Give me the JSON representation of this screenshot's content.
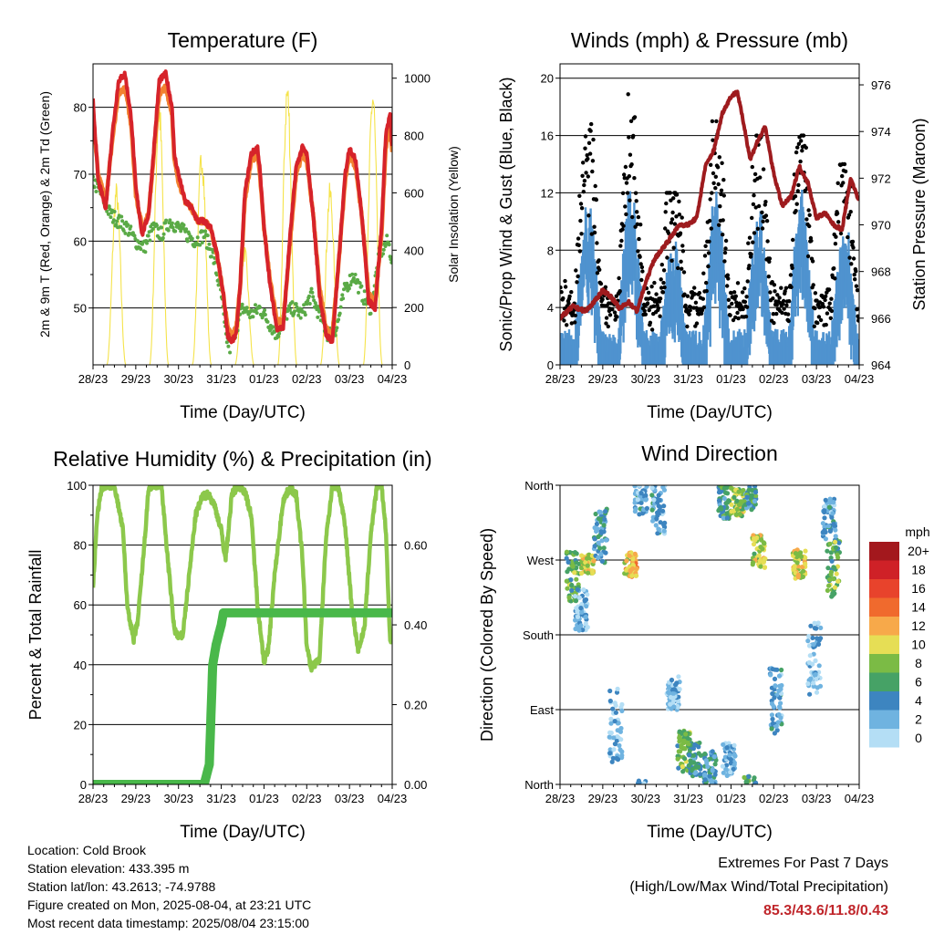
{
  "panels": {
    "temperature": {
      "title": "Temperature (F)",
      "xlabel": "Time (Day/UTC)",
      "ylabel_left": "2m & 9m T (Red, Orange) & 2m Td (Green)",
      "ylabel_right": "Solar Insolation (Yellow)"
    },
    "winds": {
      "title": "Winds (mph) & Pressure (mb)",
      "xlabel": "Time (Day/UTC)",
      "ylabel_left": "Sonic/Prop Wind & Gust (Blue, Black)",
      "ylabel_right": "Station Pressure (Maroon)"
    },
    "humidity": {
      "title": "Relative Humidity (%) & Precipitation (in)",
      "xlabel": "Time (Day/UTC)",
      "ylabel_left": "Percent & Total Rainfall"
    },
    "direction": {
      "title": "Wind Direction",
      "xlabel": "Time (Day/UTC)",
      "ylabel_left": "Direction (Colored By Speed)"
    }
  },
  "x_ticks": [
    "28/23",
    "29/23",
    "30/23",
    "31/23",
    "01/23",
    "02/23",
    "03/23",
    "04/23"
  ],
  "chart_data": [
    {
      "type": "line",
      "name": "temperature",
      "title": "Temperature (F)",
      "xlabel": "Time (Day/UTC)",
      "ylabel": "2m & 9m T (Red, Orange) & 2m Td (Green)",
      "y2label": "Solar Insolation (Yellow)",
      "xlim": [
        0,
        7
      ],
      "ylim": [
        41.5,
        86.5
      ],
      "yticks": [
        50,
        60,
        70,
        80
      ],
      "y2lim": [
        0,
        1050
      ],
      "y2ticks": [
        0,
        200,
        400,
        600,
        800,
        1000
      ],
      "grid": true,
      "series": [
        {
          "key": "t2m",
          "color": "#d6232a",
          "x": [
            0,
            0.12,
            0.3,
            0.45,
            0.6,
            0.75,
            0.9,
            1.0,
            1.15,
            1.3,
            1.45,
            1.55,
            1.7,
            1.85,
            1.9,
            2.0,
            2.15,
            2.3,
            2.45,
            2.6,
            2.75,
            2.9,
            3.05,
            3.15,
            3.25,
            3.35,
            3.45,
            3.55,
            3.7,
            3.85,
            3.9,
            4.0,
            4.15,
            4.3,
            4.45,
            4.6,
            4.75,
            4.9,
            5.0,
            5.15,
            5.3,
            5.45,
            5.6,
            5.75,
            5.9,
            6.0,
            6.15,
            6.3,
            6.45,
            6.6,
            6.75,
            6.85,
            6.95,
            7.0
          ],
          "y": [
            81,
            69,
            65,
            76,
            84,
            85,
            78,
            68,
            61,
            64,
            76,
            84,
            85,
            80,
            73,
            70,
            66,
            65,
            63,
            63,
            62,
            58,
            52,
            46,
            45,
            46,
            54,
            67,
            73,
            74,
            71,
            62,
            53,
            47,
            47,
            60,
            71,
            74,
            73,
            64,
            52,
            46,
            45,
            57,
            70,
            74,
            72,
            63,
            51,
            50,
            62,
            76,
            79,
            74
          ]
        },
        {
          "key": "t9m",
          "color": "#f28230",
          "x": [
            0,
            0.12,
            0.3,
            0.45,
            0.6,
            0.75,
            0.9,
            1.0,
            1.15,
            1.3,
            1.45,
            1.55,
            1.7,
            1.85,
            1.9,
            2.0,
            2.15,
            2.3,
            2.45,
            2.6,
            2.75,
            2.9,
            3.05,
            3.15,
            3.25,
            3.35,
            3.45,
            3.55,
            3.7,
            3.85,
            3.9,
            4.0,
            4.15,
            4.3,
            4.45,
            4.6,
            4.75,
            4.9,
            5.0,
            5.15,
            5.3,
            5.45,
            5.6,
            5.75,
            5.9,
            6.0,
            6.15,
            6.3,
            6.45,
            6.6,
            6.75,
            6.85,
            6.95,
            7.0
          ],
          "y": [
            79,
            70,
            66,
            75,
            82,
            83,
            77,
            67,
            62,
            64,
            75,
            82,
            83,
            79,
            72,
            69,
            66,
            65,
            63,
            63,
            62,
            58,
            52,
            47,
            46,
            47,
            54,
            66,
            72,
            73,
            70,
            62,
            54,
            48,
            48,
            59,
            70,
            73,
            72,
            64,
            53,
            47,
            46,
            57,
            69,
            73,
            71,
            63,
            52,
            51,
            61,
            74,
            77,
            73
          ]
        },
        {
          "key": "td2m",
          "color": "#5aaa46",
          "x": [
            0,
            0.2,
            0.4,
            0.6,
            0.8,
            1.0,
            1.2,
            1.4,
            1.6,
            1.8,
            2.0,
            2.2,
            2.4,
            2.6,
            2.8,
            3.0,
            3.1,
            3.2,
            3.3,
            3.5,
            3.7,
            3.9,
            4.1,
            4.3,
            4.5,
            4.7,
            4.9,
            5.1,
            5.3,
            5.5,
            5.7,
            5.9,
            6.1,
            6.3,
            6.5,
            6.7,
            6.9,
            7.0
          ],
          "y": [
            69,
            67,
            64,
            63,
            62,
            60,
            59,
            62,
            61,
            63,
            62,
            61,
            60,
            61,
            58,
            52,
            46,
            44,
            46,
            50,
            49,
            50,
            48,
            46,
            49,
            50,
            49,
            52,
            49,
            46,
            47,
            53,
            55,
            52,
            50,
            58,
            60,
            57
          ]
        }
      ],
      "solar": {
        "key": "solar",
        "color": "#f5e34a",
        "peaks": [
          {
            "day": 0,
            "peak": 640
          },
          {
            "day": 1,
            "peak": 950
          },
          {
            "day": 2,
            "peak": 780
          },
          {
            "day": 3,
            "peak": 420
          },
          {
            "day": 4,
            "peak": 1020
          },
          {
            "day": 5,
            "peak": 640
          },
          {
            "day": 6,
            "peak": 1000
          }
        ]
      }
    },
    {
      "type": "scatter",
      "name": "winds",
      "title": "Winds (mph) & Pressure (mb)",
      "xlabel": "Time (Day/UTC)",
      "ylabel": "Sonic/Prop Wind & Gust (Blue, Black)",
      "y2label": "Station Pressure (Maroon)",
      "xlim": [
        0,
        7
      ],
      "ylim": [
        0,
        21
      ],
      "yticks": [
        0,
        4,
        8,
        12,
        16,
        20
      ],
      "y2lim": [
        964,
        976.9
      ],
      "y2ticks": [
        964,
        966,
        968,
        970,
        972,
        974,
        976
      ],
      "grid": true,
      "daily_wind_peaks": [
        {
          "day": 0,
          "gust": 16,
          "wind": 10
        },
        {
          "day": 1,
          "gust": 17,
          "wind": 11
        },
        {
          "day": 2,
          "gust": 10,
          "wind": 7
        },
        {
          "day": 3,
          "gust": 15,
          "wind": 10
        },
        {
          "day": 4,
          "gust": 14,
          "wind": 9
        },
        {
          "day": 5,
          "gust": 14,
          "wind": 10
        },
        {
          "day": 6,
          "gust": 12,
          "wind": 8
        }
      ],
      "pressure": {
        "color": "#9e1b1e",
        "x": [
          0,
          0.3,
          0.6,
          0.8,
          1.0,
          1.2,
          1.4,
          1.6,
          1.8,
          2.0,
          2.2,
          2.4,
          2.6,
          2.8,
          3.0,
          3.2,
          3.4,
          3.6,
          3.8,
          4.0,
          4.15,
          4.3,
          4.45,
          4.6,
          4.8,
          5.0,
          5.2,
          5.4,
          5.6,
          5.8,
          6.0,
          6.2,
          6.4,
          6.6,
          6.8,
          7.0
        ],
        "y": [
          966,
          966.5,
          966.3,
          966.7,
          967.2,
          966.9,
          966.4,
          966.7,
          966.3,
          967.5,
          968.5,
          969.0,
          969.5,
          970,
          970,
          970.3,
          972.5,
          973.2,
          974.8,
          975.5,
          975.7,
          974.3,
          972.8,
          973.5,
          974.2,
          972.2,
          970.8,
          971.2,
          972.5,
          971.8,
          970.3,
          970.5,
          970,
          969.8,
          972,
          971
        ]
      }
    },
    {
      "type": "line",
      "name": "humidity",
      "title": "Relative Humidity (%) & Precipitation (in)",
      "xlabel": "Time (Day/UTC)",
      "ylabel": "Percent & Total Rainfall",
      "xlim": [
        0,
        7
      ],
      "ylim": [
        0,
        100
      ],
      "yticks": [
        0,
        20,
        40,
        60,
        80,
        100
      ],
      "y2lim": [
        0,
        0.75
      ],
      "y2ticks": [
        "0.00",
        "0.20",
        "0.40",
        "0.60"
      ],
      "grid": true,
      "series": [
        {
          "key": "rh",
          "color": "#8cc84b",
          "x": [
            0,
            0.1,
            0.2,
            0.3,
            0.5,
            0.7,
            0.8,
            0.95,
            1.05,
            1.2,
            1.3,
            1.45,
            1.6,
            1.75,
            1.9,
            2.0,
            2.1,
            2.25,
            2.4,
            2.55,
            2.7,
            2.85,
            3.0,
            3.1,
            3.25,
            3.4,
            3.55,
            3.7,
            3.85,
            4.0,
            4.1,
            4.25,
            4.45,
            4.6,
            4.75,
            4.9,
            5.0,
            5.1,
            5.3,
            5.45,
            5.6,
            5.75,
            5.9,
            6.05,
            6.2,
            6.35,
            6.5,
            6.65,
            6.75,
            6.85,
            6.95,
            7.0
          ],
          "y": [
            66,
            90,
            99,
            100,
            100,
            85,
            60,
            48,
            55,
            80,
            99,
            100,
            100,
            75,
            52,
            49,
            50,
            70,
            90,
            96,
            97,
            93,
            85,
            75,
            97,
            100,
            98,
            90,
            60,
            41,
            45,
            70,
            95,
            99,
            97,
            76,
            46,
            39,
            42,
            82,
            100,
            99,
            86,
            60,
            45,
            52,
            84,
            100,
            100,
            85,
            48,
            50
          ]
        },
        {
          "key": "precip",
          "color": "#49b84a",
          "x": [
            0,
            2.6,
            2.72,
            2.8,
            2.88,
            2.95,
            3.0,
            3.05,
            3.2,
            7.0
          ],
          "y": [
            0,
            0,
            0.05,
            0.3,
            0.35,
            0.38,
            0.4,
            0.43,
            0.43,
            0.43
          ]
        }
      ]
    },
    {
      "type": "scatter",
      "name": "direction",
      "title": "Wind Direction",
      "xlabel": "Time (Day/UTC)",
      "ylabel": "Direction (Colored By Speed)",
      "xlim": [
        0,
        7
      ],
      "ylim": [
        0,
        360
      ],
      "yticks": [
        "North",
        "East",
        "South",
        "West",
        "North"
      ],
      "ytick_values": [
        0,
        90,
        180,
        270,
        360
      ],
      "grid": true,
      "legend": {
        "title": "mph",
        "placement": "right",
        "labels": [
          "20+",
          "18",
          "16",
          "14",
          "12",
          "10",
          "8",
          "6",
          "4",
          "2",
          "0"
        ],
        "colors": [
          "#a3181d",
          "#cf2127",
          "#e8432c",
          "#f06a2d",
          "#f7a94a",
          "#e6de55",
          "#7bbb45",
          "#46a266",
          "#3d85c0",
          "#6fb3e0",
          "#b4def5"
        ]
      },
      "clusters": [
        {
          "x": 0.3,
          "dir": 250,
          "speed": 7,
          "spread": 60
        },
        {
          "x": 0.5,
          "dir": 210,
          "speed": 2,
          "spread": 50
        },
        {
          "x": 0.65,
          "dir": 265,
          "speed": 10,
          "spread": 25
        },
        {
          "x": 0.95,
          "dir": 300,
          "speed": 4,
          "spread": 70
        },
        {
          "x": 1.3,
          "dir": 70,
          "speed": 2,
          "spread": 90
        },
        {
          "x": 1.65,
          "dir": 265,
          "speed": 11,
          "spread": 30
        },
        {
          "x": 1.9,
          "dir": 345,
          "speed": 3,
          "spread": 40
        },
        {
          "x": 2.3,
          "dir": 330,
          "speed": 3,
          "spread": 60
        },
        {
          "x": 2.65,
          "dir": 110,
          "speed": 1,
          "spread": 40
        },
        {
          "x": 2.9,
          "dir": 40,
          "speed": 7,
          "spread": 50
        },
        {
          "x": 3.15,
          "dir": 30,
          "speed": 5,
          "spread": 40
        },
        {
          "x": 3.5,
          "dir": 20,
          "speed": 4,
          "spread": 40
        },
        {
          "x": 3.85,
          "dir": 340,
          "speed": 5,
          "spread": 40
        },
        {
          "x": 4.15,
          "dir": 340,
          "speed": 9,
          "spread": 35
        },
        {
          "x": 3.95,
          "dir": 30,
          "speed": 2,
          "spread": 40
        },
        {
          "x": 4.45,
          "dir": 350,
          "speed": 5,
          "spread": 40
        },
        {
          "x": 4.65,
          "dir": 280,
          "speed": 9,
          "spread": 40
        },
        {
          "x": 5.05,
          "dir": 100,
          "speed": 3,
          "spread": 80
        },
        {
          "x": 5.6,
          "dir": 265,
          "speed": 10,
          "spread": 35
        },
        {
          "x": 5.95,
          "dir": 150,
          "speed": 2,
          "spread": 90
        },
        {
          "x": 6.4,
          "dir": 260,
          "speed": 7,
          "spread": 70
        },
        {
          "x": 6.3,
          "dir": 320,
          "speed": 3,
          "spread": 50
        }
      ]
    }
  ],
  "info": {
    "location": "Location: Cold Brook",
    "elevation": "Station elevation: 433.395 m",
    "latlon": "Station lat/lon: 43.2613; -74.9788",
    "created": "Figure created on Mon, 2025-08-04, at 23:21 UTC",
    "recent": "Most recent data timestamp: 2025/08/04 23:15:00"
  },
  "extremes": {
    "title": "Extremes For Past 7 Days",
    "subtitle": "(High/Low/Max Wind/Total Precipitation)",
    "values": "85.3/43.6/11.8/0.43"
  }
}
